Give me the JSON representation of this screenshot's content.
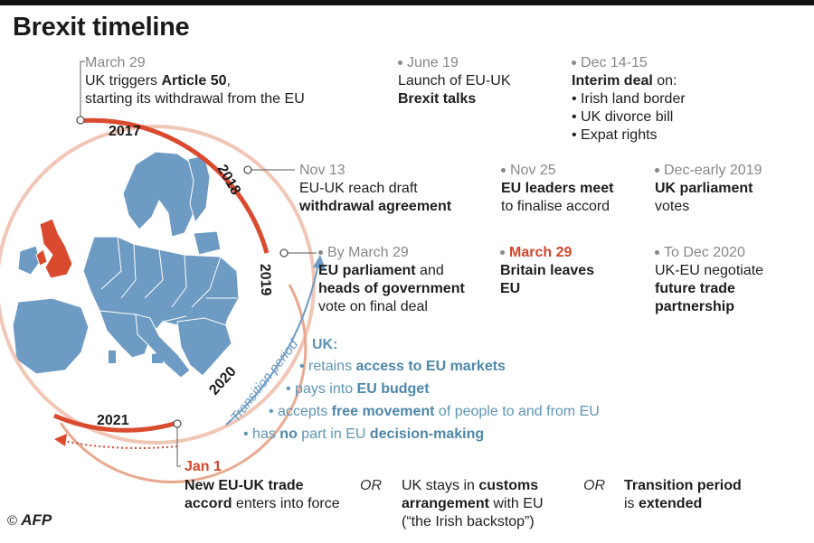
{
  "title": "Brexit timeline",
  "years": [
    "2017",
    "2018",
    "2019",
    "2020",
    "2021"
  ],
  "transition_label": "Transition period",
  "events": {
    "e1": {
      "date": "March 29",
      "pre": "UK triggers ",
      "bold": "Article 50",
      "post": ",",
      "line2": "starting its withdrawal from the EU"
    },
    "e2": {
      "date": "June 19",
      "line1": "Launch of EU-UK",
      "bold": "Brexit talks"
    },
    "e3": {
      "date": "Dec 14-15",
      "bold": "Interim deal",
      "post": " on:",
      "bullets": [
        "Irish land border",
        "UK divorce bill",
        "Expat rights"
      ]
    },
    "e4": {
      "date": "Nov 13",
      "line1": "EU-UK reach draft",
      "bold": "withdrawal agreement"
    },
    "e5": {
      "date": "Nov 25",
      "bold": "EU leaders meet",
      "line2": "to finalise accord"
    },
    "e6": {
      "date": "Dec-early 2019",
      "bold": "UK parliament",
      "line2": "votes"
    },
    "e7": {
      "date": "By March 29",
      "bold1": "EU parliament",
      "post1": " and",
      "bold2": "heads of government",
      "line3": "vote on final deal"
    },
    "e8": {
      "date": "March 29",
      "bold1": "Britain leaves",
      "bold2": "EU"
    },
    "e9": {
      "date": "To Dec 2020",
      "line1": "UK-EU negotiate",
      "bold1": "future trade",
      "bold2": "partnership"
    }
  },
  "uk": {
    "heading": "UK:",
    "b1_pre": "retains ",
    "b1_bold": "access to EU markets",
    "b2_pre": "pays into ",
    "b2_bold": "EU budget",
    "b3_pre": "accepts ",
    "b3_bold": "free movement",
    "b3_post": " of people to and from EU",
    "b4_pre": "has ",
    "b4_bold1": "no",
    "b4_mid": " part in EU ",
    "b4_bold2": "decision-making"
  },
  "outcomes": {
    "date": "Jan 1",
    "o1_bold1": "New EU-UK trade",
    "o1_bold2": "accord",
    "o1_post": " enters into force",
    "or": "OR",
    "o2_pre": "UK stays in ",
    "o2_bold1": "customs",
    "o2_bold2": "arrangement",
    "o2_post": " with EU",
    "o2_line3": "(“the Irish backstop”)",
    "o3_bold1": "Transition period",
    "o3_post": "is ",
    "o3_bold2": "extended"
  },
  "credit": {
    "symbol": "©",
    "agency": "AFP"
  },
  "colors": {
    "arc": "#d94a2e",
    "ring": "#e9a98f",
    "eu": "#6d9bc3",
    "uk": "#d94a2e",
    "uk_text": "#5d95b5",
    "red_date": "#d2452a"
  }
}
